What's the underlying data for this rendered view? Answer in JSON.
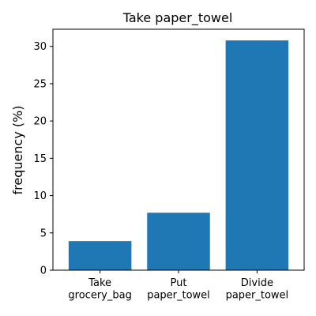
{
  "chart_data": {
    "type": "bar",
    "title": "Take paper_towel",
    "xlabel": "",
    "ylabel": "frequency (%)",
    "categories": [
      [
        "Take",
        "grocery_bag"
      ],
      [
        "Put",
        "paper_towel"
      ],
      [
        "Divide",
        "paper_towel"
      ]
    ],
    "values": [
      3.9,
      7.7,
      30.8
    ],
    "ylim": [
      0,
      32.3
    ],
    "yticks": [
      0,
      5,
      10,
      15,
      20,
      25,
      30
    ],
    "bar_color": "#1f77b4",
    "grid": false,
    "legend": false
  }
}
